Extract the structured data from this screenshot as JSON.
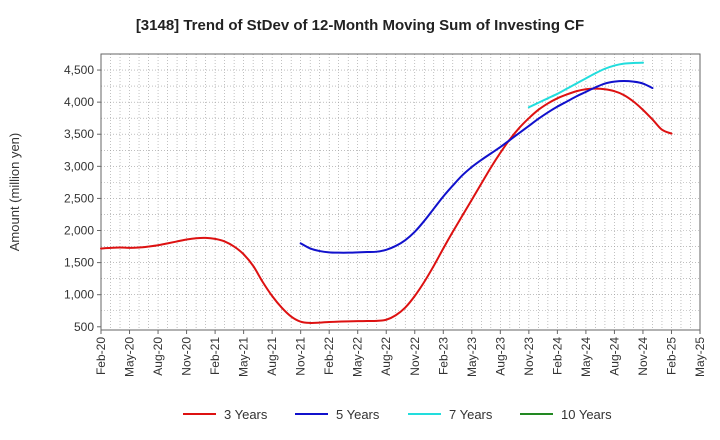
{
  "chart_data": {
    "type": "line",
    "title": "[3148]  Trend of StDev of 12-Month Moving Sum of Investing CF",
    "xlabel": "",
    "ylabel": "Amount (million yen)",
    "ylim": [
      450,
      4750
    ],
    "yticks": [
      500,
      1000,
      1500,
      2000,
      2500,
      3000,
      3500,
      4000,
      4500
    ],
    "ytick_labels": [
      "500",
      "1,000",
      "1,500",
      "2,000",
      "2,500",
      "3,000",
      "3,500",
      "4,000",
      "4,500"
    ],
    "xtick_labels": [
      "Feb-20",
      "May-20",
      "Aug-20",
      "Nov-20",
      "Feb-21",
      "May-21",
      "Aug-21",
      "Nov-21",
      "Feb-22",
      "May-22",
      "Aug-22",
      "Nov-22",
      "Feb-23",
      "May-23",
      "Aug-23",
      "Nov-23",
      "Feb-24",
      "May-24",
      "Aug-24",
      "Nov-24",
      "Feb-25",
      "May-25"
    ],
    "x_start": "Feb-20",
    "x_end": "May-25",
    "grid": true,
    "legend_position": "bottom",
    "series": [
      {
        "name": "3 Years",
        "color": "#dd1111",
        "start": "Feb-20",
        "values": [
          1720,
          1730,
          1735,
          1730,
          1735,
          1750,
          1770,
          1800,
          1830,
          1860,
          1880,
          1885,
          1870,
          1830,
          1750,
          1630,
          1450,
          1200,
          980,
          800,
          660,
          580,
          560,
          565,
          575,
          580,
          585,
          588,
          590,
          592,
          610,
          680,
          800,
          980,
          1200,
          1450,
          1720,
          1980,
          2230,
          2480,
          2730,
          2980,
          3210,
          3420,
          3600,
          3750,
          3880,
          3980,
          4060,
          4120,
          4170,
          4200,
          4210,
          4200,
          4170,
          4110,
          4010,
          3880,
          3730,
          3570,
          3510
        ]
      },
      {
        "name": "5 Years",
        "color": "#1111cc",
        "start": "Nov-21",
        "values": [
          1800,
          1720,
          1680,
          1660,
          1655,
          1655,
          1660,
          1665,
          1670,
          1700,
          1760,
          1850,
          1980,
          2150,
          2340,
          2530,
          2700,
          2860,
          2990,
          3100,
          3200,
          3300,
          3410,
          3520,
          3630,
          3740,
          3840,
          3930,
          4010,
          4090,
          4160,
          4230,
          4290,
          4320,
          4330,
          4320,
          4290,
          4220
        ]
      },
      {
        "name": "7 Years",
        "color": "#22dddd",
        "start": "Nov-23",
        "values": [
          3920,
          3990,
          4060,
          4130,
          4210,
          4290,
          4370,
          4450,
          4520,
          4570,
          4600,
          4610,
          4615
        ]
      },
      {
        "name": "10 Years",
        "color": "#228822",
        "start": "Nov-23",
        "values": []
      }
    ]
  }
}
